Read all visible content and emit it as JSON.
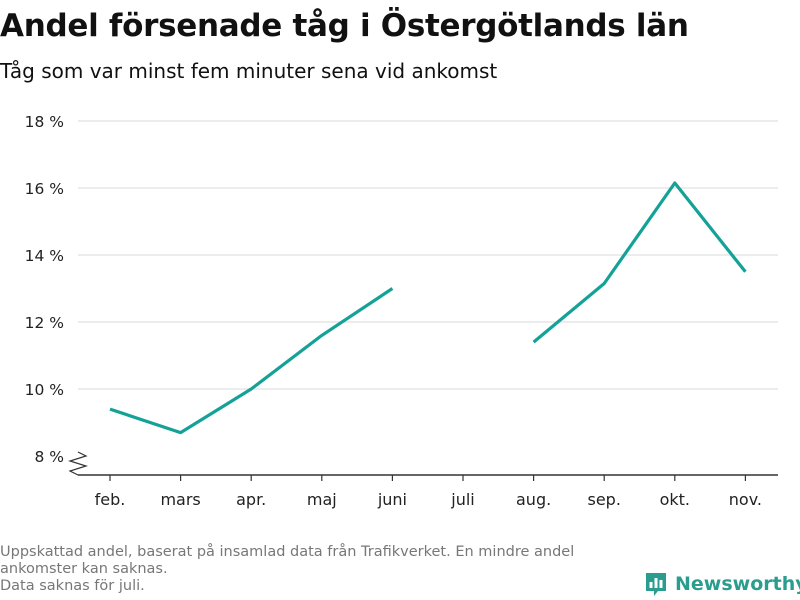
{
  "title": "Andel försenade tåg i Östergötlands län",
  "subtitle": "Tåg som var minst fem minuter sena vid ankomst",
  "footnote": {
    "line1": "Uppskattad andel, baserat på insamlad data från Trafikverket. En mindre andel",
    "line2": "ankomster kan saknas.",
    "line3": "Data saknas för juli."
  },
  "brand": {
    "name": "Newsworthy",
    "icon": "bar-chart-logo-icon"
  },
  "colors": {
    "line": "#14a197",
    "grid": "#d9d9d9",
    "axis": "#333333",
    "brand": "#2a9d8f"
  },
  "chart_data": {
    "type": "line",
    "categories": [
      "feb.",
      "mars",
      "apr.",
      "maj",
      "juni",
      "juli",
      "aug.",
      "sep.",
      "okt.",
      "nov."
    ],
    "series": [
      {
        "values": [
          9.4,
          8.7,
          10.0,
          11.6,
          13.0,
          null,
          11.4,
          13.15,
          16.15,
          13.5
        ]
      }
    ],
    "yticks": [
      {
        "value": 8,
        "label": "8 %"
      },
      {
        "value": 10,
        "label": "10 %"
      },
      {
        "value": 12,
        "label": "12 %"
      },
      {
        "value": 14,
        "label": "14 %"
      },
      {
        "value": 16,
        "label": "16 %"
      },
      {
        "value": 18,
        "label": "18 %"
      }
    ],
    "ylim": [
      8,
      18
    ],
    "y_axis_break": true,
    "grid": true,
    "xlabel": "",
    "ylabel": ""
  }
}
